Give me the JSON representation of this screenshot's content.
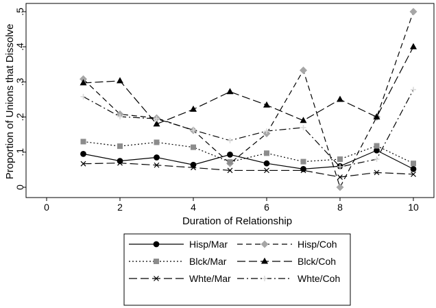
{
  "chart_data": {
    "type": "line",
    "title": "",
    "xlabel": "Duration of Relationship",
    "ylabel": "Proportion of Unions that Dissolve",
    "xlim": [
      0,
      10
    ],
    "ylim": [
      0,
      0.5
    ],
    "x_ticks": [
      0,
      2,
      4,
      6,
      8,
      10
    ],
    "x_tick_labels": [
      "0",
      "2",
      "4",
      "6",
      "8",
      "10"
    ],
    "y_ticks": [
      0,
      0.1,
      0.2,
      0.3,
      0.4,
      0.5
    ],
    "y_tick_labels": [
      "0",
      ".1",
      ".2",
      ".3",
      ".4",
      ".5"
    ],
    "grid": false,
    "legend_position": "bottom",
    "x": [
      1,
      2,
      3,
      4,
      5,
      6,
      7,
      8,
      9,
      10
    ],
    "series": [
      {
        "name": "Hisp/Mar",
        "values": [
          0.095,
          0.075,
          0.085,
          0.064,
          0.093,
          0.068,
          0.052,
          0.06,
          0.105,
          0.052
        ],
        "color": "#000000",
        "dash": "solid",
        "marker": "circle",
        "marker_color": "#000000"
      },
      {
        "name": "Hisp/Coh",
        "values": [
          0.308,
          0.208,
          0.197,
          0.162,
          0.068,
          0.153,
          0.333,
          0.0,
          0.2,
          0.5
        ],
        "color": "#000000",
        "dash": "dashed",
        "marker": "diamond",
        "marker_color": "#a6a6a6"
      },
      {
        "name": "Blck/Mar",
        "values": [
          0.13,
          0.117,
          0.128,
          0.114,
          0.072,
          0.097,
          0.073,
          0.08,
          0.118,
          0.068
        ],
        "color": "#000000",
        "dash": "dotted",
        "marker": "square",
        "marker_color": "#8c8c8c"
      },
      {
        "name": "Blck/Coh",
        "values": [
          0.297,
          0.303,
          0.18,
          0.222,
          0.272,
          0.234,
          0.19,
          0.25,
          0.2,
          0.4
        ],
        "color": "#000000",
        "dash": "longdash",
        "marker": "triangle",
        "marker_color": "#000000"
      },
      {
        "name": "Whte/Mar",
        "values": [
          0.067,
          0.069,
          0.063,
          0.056,
          0.048,
          0.048,
          0.048,
          0.029,
          0.042,
          0.037
        ],
        "color": "#000000",
        "dash": "longdash",
        "marker": "x",
        "marker_color": "#000000"
      },
      {
        "name": "Whte/Coh",
        "values": [
          0.258,
          0.201,
          0.195,
          0.163,
          0.133,
          0.16,
          0.17,
          0.058,
          0.08,
          0.278
        ],
        "color": "#000000",
        "dash": "dashdot",
        "marker": "plus",
        "marker_color": "#d9d9d9"
      }
    ]
  }
}
